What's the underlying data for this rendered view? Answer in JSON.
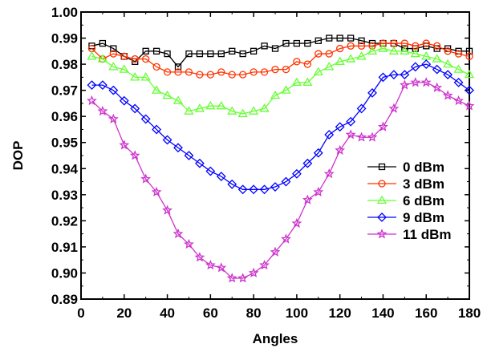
{
  "chart_data": {
    "type": "line",
    "xlabel": "Angles",
    "ylabel": "DOP",
    "xlim": [
      0,
      180
    ],
    "ylim": [
      0.89,
      1.0
    ],
    "x_ticks": [
      0,
      20,
      40,
      60,
      80,
      100,
      120,
      140,
      160,
      180
    ],
    "x_tick_labels": [
      "0",
      "20",
      "40",
      "60",
      "80",
      "100",
      "120",
      "140",
      "160",
      "180"
    ],
    "y_ticks": [
      0.89,
      0.9,
      0.91,
      0.92,
      0.93,
      0.94,
      0.95,
      0.96,
      0.97,
      0.98,
      0.99,
      1.0
    ],
    "y_tick_labels": [
      "0.89",
      "0.90",
      "0.91",
      "0.92",
      "0.93",
      "0.94",
      "0.95",
      "0.96",
      "0.97",
      "0.98",
      "0.99",
      "1.00"
    ],
    "grid": false,
    "legend_position": "right",
    "x": [
      5,
      10,
      15,
      20,
      25,
      30,
      35,
      40,
      45,
      50,
      55,
      60,
      65,
      70,
      75,
      80,
      85,
      90,
      95,
      100,
      105,
      110,
      115,
      120,
      125,
      130,
      135,
      140,
      145,
      150,
      155,
      160,
      165,
      170,
      175,
      180
    ],
    "series": [
      {
        "name": "0 dBm",
        "color": "#000000",
        "marker": "square",
        "values": [
          0.987,
          0.988,
          0.986,
          0.983,
          0.981,
          0.985,
          0.985,
          0.984,
          0.979,
          0.984,
          0.984,
          0.984,
          0.984,
          0.985,
          0.984,
          0.985,
          0.987,
          0.986,
          0.988,
          0.988,
          0.988,
          0.989,
          0.99,
          0.99,
          0.99,
          0.989,
          0.988,
          0.988,
          0.988,
          0.986,
          0.986,
          0.987,
          0.986,
          0.986,
          0.985,
          0.985
        ]
      },
      {
        "name": "3 dBm",
        "color": "#ff3300",
        "marker": "circle",
        "values": [
          0.986,
          0.982,
          0.984,
          0.983,
          0.982,
          0.982,
          0.979,
          0.977,
          0.977,
          0.977,
          0.976,
          0.976,
          0.977,
          0.976,
          0.976,
          0.977,
          0.977,
          0.978,
          0.978,
          0.981,
          0.98,
          0.984,
          0.984,
          0.986,
          0.987,
          0.987,
          0.987,
          0.988,
          0.988,
          0.988,
          0.987,
          0.988,
          0.987,
          0.985,
          0.984,
          0.983
        ]
      },
      {
        "name": "6 dBm",
        "color": "#66ff33",
        "marker": "triangle",
        "values": [
          0.983,
          0.982,
          0.979,
          0.978,
          0.975,
          0.975,
          0.97,
          0.968,
          0.966,
          0.962,
          0.963,
          0.964,
          0.964,
          0.962,
          0.961,
          0.962,
          0.963,
          0.968,
          0.97,
          0.973,
          0.973,
          0.977,
          0.979,
          0.981,
          0.982,
          0.983,
          0.985,
          0.986,
          0.985,
          0.985,
          0.984,
          0.983,
          0.982,
          0.98,
          0.978,
          0.976
        ]
      },
      {
        "name": "9 dBm",
        "color": "#0000ff",
        "marker": "diamond",
        "values": [
          0.972,
          0.972,
          0.97,
          0.966,
          0.963,
          0.959,
          0.955,
          0.951,
          0.948,
          0.945,
          0.942,
          0.939,
          0.937,
          0.934,
          0.932,
          0.932,
          0.932,
          0.933,
          0.935,
          0.938,
          0.942,
          0.946,
          0.953,
          0.956,
          0.958,
          0.963,
          0.969,
          0.975,
          0.976,
          0.976,
          0.979,
          0.98,
          0.978,
          0.976,
          0.973,
          0.97
        ]
      },
      {
        "name": "11 dBm",
        "color": "#cc33cc",
        "marker": "star",
        "values": [
          0.966,
          0.962,
          0.959,
          0.949,
          0.945,
          0.936,
          0.931,
          0.924,
          0.915,
          0.911,
          0.906,
          0.903,
          0.902,
          0.898,
          0.898,
          0.9,
          0.903,
          0.908,
          0.913,
          0.919,
          0.928,
          0.931,
          0.938,
          0.947,
          0.953,
          0.952,
          0.952,
          0.956,
          0.963,
          0.972,
          0.973,
          0.973,
          0.971,
          0.968,
          0.966,
          0.964
        ]
      }
    ]
  }
}
